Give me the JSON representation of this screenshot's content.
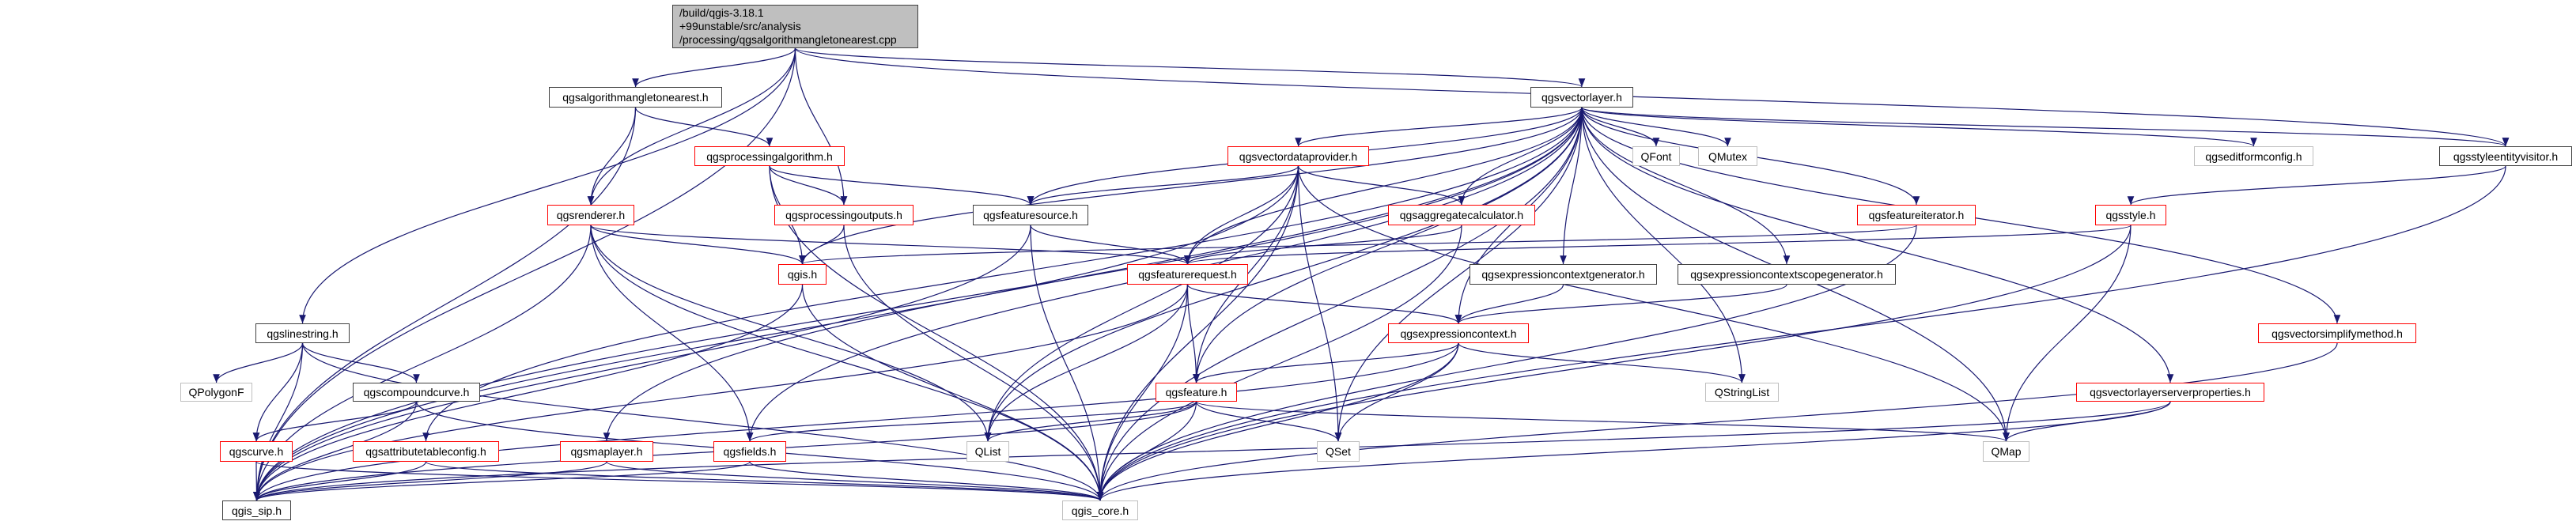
{
  "diagram": {
    "type": "include-dependency-graph",
    "edge_color": "#191970",
    "main_node": {
      "id": "main",
      "lines": [
        "/build/qgis-3.18.1",
        "+99unstable/src/analysis",
        "/processing/qgsalgorithmangletonearest.cpp"
      ],
      "fill": "#bfbfbf"
    },
    "nodes": [
      {
        "id": "angle",
        "label": "qgsalgorithmangletonearest.h",
        "style": "black"
      },
      {
        "id": "vlayer",
        "label": "qgsvectorlayer.h",
        "style": "black"
      },
      {
        "id": "procalg",
        "label": "qgsprocessingalgorithm.h",
        "style": "red"
      },
      {
        "id": "vdp",
        "label": "qgsvectordataprovider.h",
        "style": "red"
      },
      {
        "id": "qfont",
        "label": "QFont",
        "style": "grey"
      },
      {
        "id": "qmutex",
        "label": "QMutex",
        "style": "grey"
      },
      {
        "id": "editform",
        "label": "qgseditformconfig.h",
        "style": "grey"
      },
      {
        "id": "styleentity",
        "label": "qgsstyleentityvisitor.h",
        "style": "black"
      },
      {
        "id": "renderer",
        "label": "qgsrenderer.h",
        "style": "red"
      },
      {
        "id": "procout",
        "label": "qgsprocessingoutputs.h",
        "style": "red"
      },
      {
        "id": "fsource",
        "label": "qgsfeaturesource.h",
        "style": "black"
      },
      {
        "id": "aggcalc",
        "label": "qgsaggregatecalculator.h",
        "style": "red"
      },
      {
        "id": "fiter",
        "label": "qgsfeatureiterator.h",
        "style": "red"
      },
      {
        "id": "style",
        "label": "qgsstyle.h",
        "style": "red"
      },
      {
        "id": "qgis",
        "label": "qgis.h",
        "style": "red"
      },
      {
        "id": "freq",
        "label": "qgsfeaturerequest.h",
        "style": "red"
      },
      {
        "id": "ecgen",
        "label": "qgsexpressioncontextgenerator.h",
        "style": "black"
      },
      {
        "id": "ecsgen",
        "label": "qgsexpressioncontextscopegenerator.h",
        "style": "black"
      },
      {
        "id": "linestring",
        "label": "qgslinestring.h",
        "style": "black"
      },
      {
        "id": "expctx",
        "label": "qgsexpressioncontext.h",
        "style": "red"
      },
      {
        "id": "simplify",
        "label": "qgsvectorsimplifymethod.h",
        "style": "red"
      },
      {
        "id": "qpolygonf",
        "label": "QPolygonF",
        "style": "grey"
      },
      {
        "id": "compound",
        "label": "qgscompoundcurve.h",
        "style": "black"
      },
      {
        "id": "feature",
        "label": "qgsfeature.h",
        "style": "red"
      },
      {
        "id": "qstringlist",
        "label": "QStringList",
        "style": "grey"
      },
      {
        "id": "serverprops",
        "label": "qgsvectorlayerserverproperties.h",
        "style": "red"
      },
      {
        "id": "curve",
        "label": "qgscurve.h",
        "style": "red"
      },
      {
        "id": "attrtable",
        "label": "qgsattributetableconfig.h",
        "style": "red"
      },
      {
        "id": "maplayer",
        "label": "qgsmaplayer.h",
        "style": "red"
      },
      {
        "id": "fields",
        "label": "qgsfields.h",
        "style": "red"
      },
      {
        "id": "qlist",
        "label": "QList",
        "style": "grey"
      },
      {
        "id": "qset",
        "label": "QSet",
        "style": "grey"
      },
      {
        "id": "qmap",
        "label": "QMap",
        "style": "grey"
      },
      {
        "id": "sip",
        "label": "qgis_sip.h",
        "style": "black"
      },
      {
        "id": "core",
        "label": "qgis_core.h",
        "style": "grey"
      }
    ],
    "edges": [
      [
        "main",
        "angle"
      ],
      [
        "main",
        "vlayer"
      ],
      [
        "main",
        "styleentity"
      ],
      [
        "main",
        "renderer"
      ],
      [
        "main",
        "procout"
      ],
      [
        "main",
        "linestring"
      ],
      [
        "main",
        "sip"
      ],
      [
        "angle",
        "sip"
      ],
      [
        "angle",
        "procalg"
      ],
      [
        "angle",
        "renderer"
      ],
      [
        "procalg",
        "procout"
      ],
      [
        "procalg",
        "qgis"
      ],
      [
        "procalg",
        "fsource"
      ],
      [
        "procalg",
        "core"
      ],
      [
        "procout",
        "qgis"
      ],
      [
        "procout",
        "core"
      ],
      [
        "renderer",
        "qgis"
      ],
      [
        "renderer",
        "fields"
      ],
      [
        "renderer",
        "freq"
      ],
      [
        "renderer",
        "sip"
      ],
      [
        "renderer",
        "core"
      ],
      [
        "renderer",
        "qlist"
      ],
      [
        "qgis",
        "sip"
      ],
      [
        "qgis",
        "core"
      ],
      [
        "vlayer",
        "core"
      ],
      [
        "vlayer",
        "qfont"
      ],
      [
        "vlayer",
        "qmutex"
      ],
      [
        "vlayer",
        "vdp"
      ],
      [
        "vlayer",
        "fsource"
      ],
      [
        "vlayer",
        "freq"
      ],
      [
        "vlayer",
        "feature"
      ],
      [
        "vlayer",
        "aggcalc"
      ],
      [
        "vlayer",
        "expctx"
      ],
      [
        "vlayer",
        "ecgen"
      ],
      [
        "vlayer",
        "ecsgen"
      ],
      [
        "vlayer",
        "fiter"
      ],
      [
        "vlayer",
        "qmap"
      ],
      [
        "vlayer",
        "qset"
      ],
      [
        "vlayer",
        "qlist"
      ],
      [
        "vlayer",
        "qstringlist"
      ],
      [
        "vlayer",
        "editform"
      ],
      [
        "vlayer",
        "serverprops"
      ],
      [
        "vlayer",
        "simplify"
      ],
      [
        "vlayer",
        "styleentity"
      ],
      [
        "vlayer",
        "qgis"
      ],
      [
        "vlayer",
        "fields"
      ],
      [
        "vlayer",
        "maplayer"
      ],
      [
        "vlayer",
        "attrtable"
      ],
      [
        "vlayer",
        "sip"
      ],
      [
        "vdp",
        "sip"
      ],
      [
        "vdp",
        "fsource"
      ],
      [
        "vdp",
        "freq"
      ],
      [
        "vdp",
        "aggcalc"
      ],
      [
        "vdp",
        "feature"
      ],
      [
        "vdp",
        "qlist"
      ],
      [
        "vdp",
        "qset"
      ],
      [
        "vdp",
        "core"
      ],
      [
        "vdp",
        "qmap"
      ],
      [
        "fsource",
        "freq"
      ],
      [
        "fsource",
        "core"
      ],
      [
        "fsource",
        "sip"
      ],
      [
        "aggcalc",
        "freq"
      ],
      [
        "aggcalc",
        "core"
      ],
      [
        "freq",
        "feature"
      ],
      [
        "freq",
        "expctx"
      ],
      [
        "freq",
        "qlist"
      ],
      [
        "freq",
        "core"
      ],
      [
        "freq",
        "sip"
      ],
      [
        "ecgen",
        "expctx"
      ],
      [
        "ecsgen",
        "expctx"
      ],
      [
        "expctx",
        "feature"
      ],
      [
        "expctx",
        "qstringlist"
      ],
      [
        "expctx",
        "qset"
      ],
      [
        "expctx",
        "core"
      ],
      [
        "expctx",
        "sip"
      ],
      [
        "feature",
        "fields"
      ],
      [
        "feature",
        "qlist"
      ],
      [
        "feature",
        "qset"
      ],
      [
        "feature",
        "qmap"
      ],
      [
        "feature",
        "core"
      ],
      [
        "feature",
        "sip"
      ],
      [
        "fiter",
        "qgis"
      ],
      [
        "fiter",
        "core"
      ],
      [
        "style",
        "freq"
      ],
      [
        "style",
        "qmap"
      ],
      [
        "style",
        "core"
      ],
      [
        "styleentity",
        "style"
      ],
      [
        "styleentity",
        "core"
      ],
      [
        "simplify",
        "core"
      ],
      [
        "serverprops",
        "qmap"
      ],
      [
        "serverprops",
        "core"
      ],
      [
        "serverprops",
        "sip"
      ],
      [
        "linestring",
        "qpolygonf"
      ],
      [
        "linestring",
        "compound"
      ],
      [
        "linestring",
        "curve"
      ],
      [
        "linestring",
        "sip"
      ],
      [
        "linestring",
        "core"
      ],
      [
        "compound",
        "curve"
      ],
      [
        "compound",
        "sip"
      ],
      [
        "compound",
        "core"
      ],
      [
        "curve",
        "sip"
      ],
      [
        "curve",
        "core"
      ],
      [
        "attrtable",
        "sip"
      ],
      [
        "attrtable",
        "core"
      ],
      [
        "maplayer",
        "sip"
      ],
      [
        "maplayer",
        "core"
      ],
      [
        "fields",
        "sip"
      ],
      [
        "fields",
        "core"
      ]
    ]
  }
}
